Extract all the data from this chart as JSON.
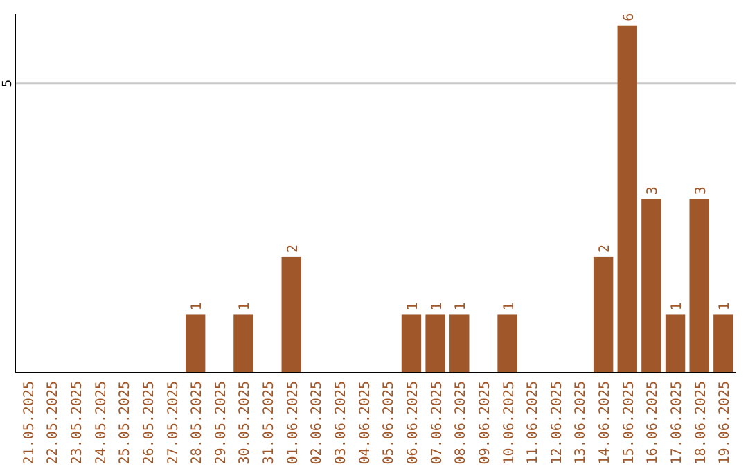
{
  "chart_data": {
    "type": "bar",
    "categories": [
      "21.05.2025",
      "22.05.2025",
      "23.05.2025",
      "24.05.2025",
      "25.05.2025",
      "26.05.2025",
      "27.05.2025",
      "28.05.2025",
      "29.05.2025",
      "30.05.2025",
      "31.05.2025",
      "01.06.2025",
      "02.06.2025",
      "03.06.2025",
      "04.06.2025",
      "05.06.2025",
      "06.06.2025",
      "07.06.2025",
      "08.06.2025",
      "09.06.2025",
      "10.06.2025",
      "11.06.2025",
      "12.06.2025",
      "13.06.2025",
      "14.06.2025",
      "15.06.2025",
      "16.06.2025",
      "17.06.2025",
      "18.06.2025",
      "19.06.2025"
    ],
    "values": [
      0,
      0,
      0,
      0,
      0,
      0,
      0,
      1,
      0,
      1,
      0,
      2,
      0,
      0,
      0,
      0,
      1,
      1,
      1,
      0,
      1,
      0,
      0,
      0,
      2,
      6,
      3,
      1,
      3,
      1
    ],
    "value_labels": [
      null,
      null,
      null,
      null,
      null,
      null,
      null,
      "1",
      null,
      "1",
      null,
      "2",
      null,
      null,
      null,
      null,
      "1",
      "1",
      "1",
      null,
      "1",
      null,
      null,
      null,
      "2",
      "6",
      "3",
      "1",
      "3",
      "1"
    ],
    "color": "#a0572a",
    "ylim": [
      0,
      6.2
    ],
    "yticks": [
      5
    ],
    "grid": "y"
  }
}
